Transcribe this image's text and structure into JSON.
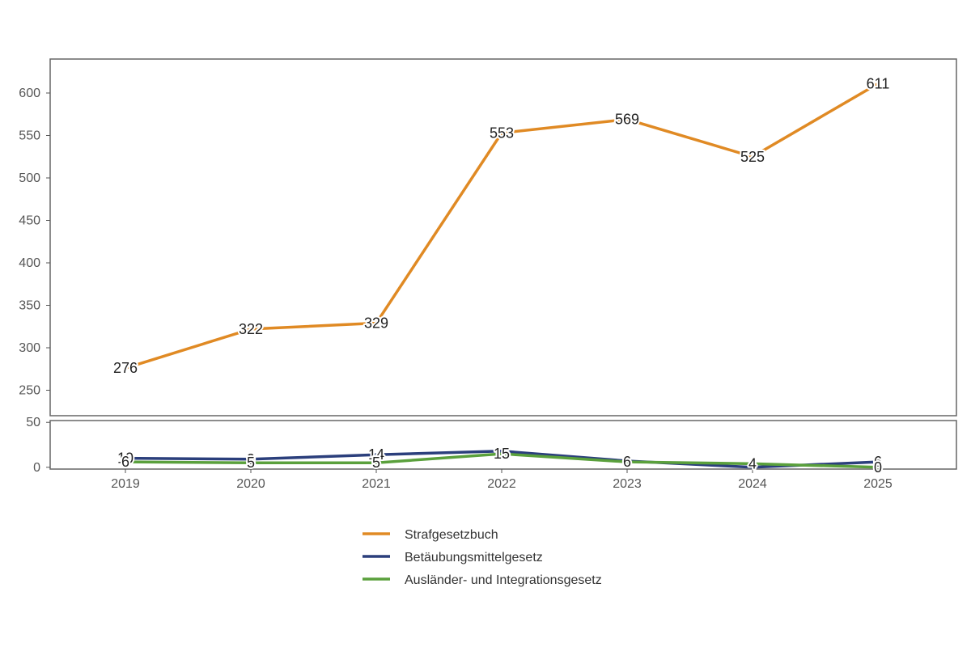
{
  "chart_data": {
    "type": "line",
    "categories": [
      "2019",
      "2020",
      "2021",
      "2022",
      "2023",
      "2024",
      "2025"
    ],
    "series": [
      {
        "name": "Strafgesetzbuch",
        "color": "#e08a24",
        "values": [
          276,
          322,
          329,
          553,
          569,
          525,
          611
        ],
        "labels": [
          "276",
          "322",
          "329",
          "553",
          "569",
          "525",
          "611"
        ]
      },
      {
        "name": "Betäubungsmittelgesetz",
        "color": "#2b3f7c",
        "values": [
          10,
          9,
          14,
          18,
          7,
          0,
          6
        ],
        "labels": [
          "10",
          "9",
          "14",
          "",
          "",
          "",
          "6"
        ]
      },
      {
        "name": "Ausländer- und Integrationsgesetz",
        "color": "#5aa03c",
        "values": [
          6,
          5,
          5,
          15,
          6,
          4,
          0
        ],
        "labels": [
          "6",
          "5",
          "5",
          "15",
          "6",
          "4",
          "0"
        ]
      }
    ],
    "upper_panel": {
      "ylim": [
        220,
        640
      ],
      "yticks": [
        "250",
        "300",
        "350",
        "400",
        "450",
        "500",
        "550",
        "600"
      ],
      "series": [
        "Strafgesetzbuch"
      ]
    },
    "lower_panel": {
      "ylim": [
        -2,
        52
      ],
      "yticks": [
        "0",
        "50"
      ],
      "series": [
        "Betäubungsmittelgesetz",
        "Ausländer- und Integrationsgesetz"
      ]
    },
    "legend": "bottom",
    "grid": false
  }
}
